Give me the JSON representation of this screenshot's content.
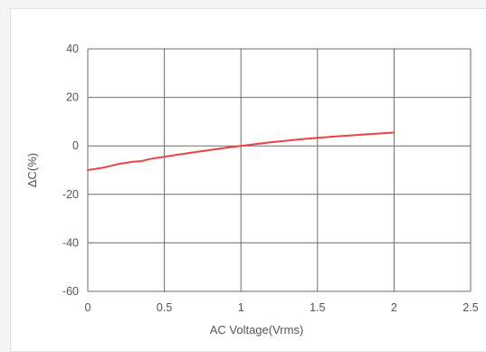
{
  "chart_data": {
    "type": "line",
    "title": "",
    "xlabel": "AC Voltage(Vrms)",
    "ylabel": "ΔC(%)",
    "xlim": [
      0,
      2.5
    ],
    "ylim": [
      -60,
      40
    ],
    "xticks": [
      0,
      0.5,
      1,
      1.5,
      2,
      2.5
    ],
    "yticks": [
      -60,
      -40,
      -20,
      0,
      20,
      40
    ],
    "xtick_labels": [
      "0",
      "0.5",
      "1",
      "1.5",
      "2",
      "2.5"
    ],
    "ytick_labels": [
      "-60",
      "-40",
      "-20",
      "0",
      "20",
      "40"
    ],
    "grid": true,
    "series": [
      {
        "color": "#e8443f",
        "x": [
          0,
          0.1,
          0.2,
          0.3,
          0.35,
          0.4,
          0.5,
          0.6,
          0.7,
          0.8,
          0.9,
          1.0,
          1.2,
          1.4,
          1.6,
          1.8,
          2.0
        ],
        "y": [
          -10,
          -9,
          -7.5,
          -6.5,
          -6.3,
          -5.5,
          -4.5,
          -3.5,
          -2.6,
          -1.7,
          -0.8,
          0,
          1.5,
          2.8,
          3.8,
          4.7,
          5.5
        ]
      }
    ]
  }
}
